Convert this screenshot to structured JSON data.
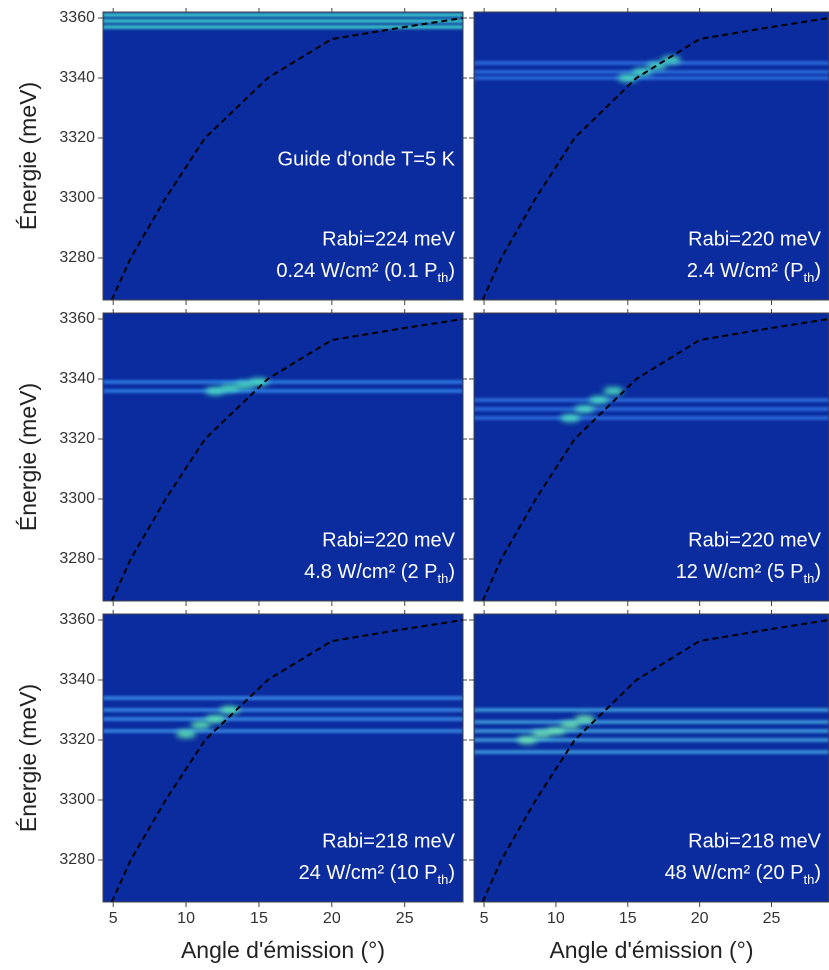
{
  "chart_data": [
    {
      "type": "heatmap",
      "xlim": [
        4.3,
        29
      ],
      "xticks": [
        5,
        10,
        15,
        20,
        25
      ],
      "ylim": [
        3266,
        3362
      ],
      "yticks": [
        3280,
        3300,
        3320,
        3340,
        3360
      ],
      "ytick_labels": true,
      "xtick_labels": false,
      "ylabel": "Énergie (meV)",
      "background": "#0a2c9e",
      "label": "Guide d'onde T=5 K",
      "rabi": "Rabi=224 meV",
      "power": [
        "0.24 W/cm² (0.1 P",
        "th",
        ")"
      ],
      "lines": {
        "values": [
          3357,
          3359,
          3361
        ],
        "color": "#3fd8d0"
      },
      "emission": {
        "x": [],
        "values": [],
        "color": "#4fe8c0"
      },
      "series": [
        {
          "x": [
            4.9,
            6.2,
            8.6,
            11.3,
            15.6,
            20,
            25,
            29
          ],
          "values": [
            3266,
            3280,
            3300,
            3320,
            3340,
            3353,
            3357,
            3360
          ],
          "color": "#000000",
          "dash": true
        }
      ]
    },
    {
      "type": "heatmap",
      "xlim": [
        4.3,
        29
      ],
      "xticks": [
        5,
        10,
        15,
        20,
        25
      ],
      "ylim": [
        3266,
        3362
      ],
      "yticks": [
        3280,
        3300,
        3320,
        3340,
        3360
      ],
      "ytick_labels": false,
      "xtick_labels": false,
      "background": "#0a2c9e",
      "rabi": "Rabi=220 meV",
      "power": [
        "2.4 W/cm² (P",
        "th",
        ")"
      ],
      "lines": {
        "values": [
          3340,
          3342,
          3345
        ],
        "color": "#2f6fe0"
      },
      "emission": {
        "x": [
          15,
          16,
          17,
          18
        ],
        "values": [
          3340,
          3342,
          3344,
          3346
        ],
        "color": "#4fe8c0"
      },
      "series": [
        {
          "x": [
            4.9,
            6.2,
            8.6,
            11.3,
            15.6,
            20,
            25,
            29
          ],
          "values": [
            3266,
            3280,
            3300,
            3320,
            3340,
            3353,
            3357,
            3360
          ],
          "color": "#000000",
          "dash": true
        }
      ]
    },
    {
      "type": "heatmap",
      "xlim": [
        4.3,
        29
      ],
      "xticks": [
        5,
        10,
        15,
        20,
        25
      ],
      "ylim": [
        3266,
        3362
      ],
      "yticks": [
        3280,
        3300,
        3320,
        3340,
        3360
      ],
      "ytick_labels": true,
      "xtick_labels": false,
      "ylabel": "Énergie (meV)",
      "background": "#0a2c9e",
      "rabi": "Rabi=220 meV",
      "power": [
        "4.8 W/cm² (2 P",
        "th",
        ")"
      ],
      "lines": {
        "values": [
          3336,
          3339
        ],
        "color": "#2f7fe8"
      },
      "emission": {
        "x": [
          12,
          13,
          14,
          15
        ],
        "values": [
          3336,
          3337,
          3338,
          3339
        ],
        "color": "#4fe8c0"
      },
      "series": [
        {
          "x": [
            4.9,
            6.2,
            8.6,
            11.3,
            15.6,
            20,
            25,
            29
          ],
          "values": [
            3266,
            3280,
            3300,
            3320,
            3340,
            3353,
            3357,
            3360
          ],
          "color": "#000000",
          "dash": true
        }
      ]
    },
    {
      "type": "heatmap",
      "xlim": [
        4.3,
        29
      ],
      "xticks": [
        5,
        10,
        15,
        20,
        25
      ],
      "ylim": [
        3266,
        3362
      ],
      "yticks": [
        3280,
        3300,
        3320,
        3340,
        3360
      ],
      "ytick_labels": false,
      "xtick_labels": false,
      "background": "#0a2c9e",
      "rabi": "Rabi=220 meV",
      "power": [
        "12 W/cm² (5 P",
        "th",
        ")"
      ],
      "lines": {
        "values": [
          3327,
          3330,
          3333
        ],
        "color": "#2f6fe0"
      },
      "emission": {
        "x": [
          11,
          12,
          13,
          14
        ],
        "values": [
          3327,
          3330,
          3333,
          3336
        ],
        "color": "#4fe8c0"
      },
      "series": [
        {
          "x": [
            4.9,
            6.2,
            8.6,
            11.3,
            15.6,
            20,
            25,
            29
          ],
          "values": [
            3266,
            3280,
            3300,
            3320,
            3340,
            3353,
            3357,
            3360
          ],
          "color": "#000000",
          "dash": true
        }
      ]
    },
    {
      "type": "heatmap",
      "xlim": [
        4.3,
        29
      ],
      "xticks": [
        5,
        10,
        15,
        20,
        25
      ],
      "ylim": [
        3266,
        3362
      ],
      "yticks": [
        3280,
        3300,
        3320,
        3340,
        3360
      ],
      "ytick_labels": true,
      "xtick_labels": true,
      "ylabel": "Énergie (meV)",
      "xlabel": "Angle d'émission (°)",
      "background": "#0a2c9e",
      "rabi": "Rabi=218 meV",
      "power": [
        "24 W/cm² (10 P",
        "th",
        ")"
      ],
      "lines": {
        "values": [
          3323,
          3327,
          3330,
          3334
        ],
        "color": "#3a8ae8"
      },
      "emission": {
        "x": [
          10,
          11,
          12,
          13
        ],
        "values": [
          3322,
          3325,
          3327,
          3330
        ],
        "color": "#5ff0b0"
      },
      "series": [
        {
          "x": [
            4.9,
            6.2,
            8.6,
            11.3,
            15.6,
            20,
            25,
            29
          ],
          "values": [
            3266,
            3280,
            3300,
            3320,
            3340,
            3353,
            3357,
            3360
          ],
          "color": "#000000",
          "dash": true
        }
      ]
    },
    {
      "type": "heatmap",
      "xlim": [
        4.3,
        29
      ],
      "xticks": [
        5,
        10,
        15,
        20,
        25
      ],
      "ylim": [
        3266,
        3362
      ],
      "yticks": [
        3280,
        3300,
        3320,
        3340,
        3360
      ],
      "ytick_labels": false,
      "xtick_labels": true,
      "xlabel": "Angle d'émission (°)",
      "background": "#0a2c9e",
      "rabi": "Rabi=218 meV",
      "power": [
        "48 W/cm² (20 P",
        "th",
        ")"
      ],
      "lines": {
        "values": [
          3316,
          3320,
          3323,
          3326,
          3330
        ],
        "color": "#3fa0e0"
      },
      "emission": {
        "x": [
          8,
          9,
          10,
          11,
          12
        ],
        "values": [
          3320,
          3322,
          3323,
          3325,
          3327
        ],
        "color": "#6ff0b0"
      },
      "series": [
        {
          "x": [
            4.9,
            6.2,
            8.6,
            11.3,
            15.6,
            20,
            25,
            29
          ],
          "values": [
            3266,
            3280,
            3300,
            3320,
            3340,
            3353,
            3357,
            3360
          ],
          "color": "#000000",
          "dash": true
        }
      ]
    }
  ]
}
